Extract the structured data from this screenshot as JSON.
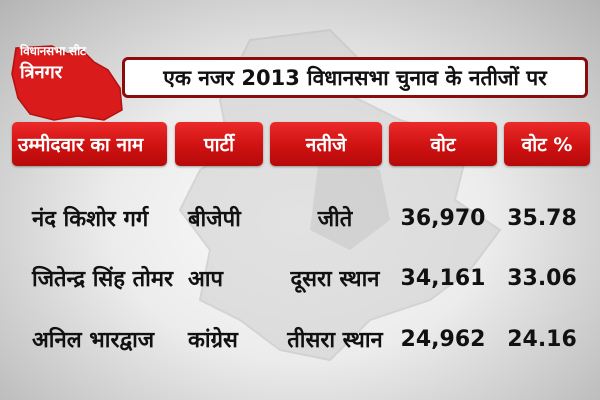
{
  "logo": {
    "line1": "विधानसभा सीट",
    "line2": "त्रिनगर"
  },
  "title": "एक नजर 2013 विधानसभा चुनाव के नतीजों पर",
  "columns": [
    "उम्मीदवार का नाम",
    "पार्टी",
    "नतीजे",
    "वोट",
    "वोट %"
  ],
  "rows": [
    {
      "name": "नंद किशोर गर्ग",
      "party": "बीजेपी",
      "result": "जीते",
      "votes": "36,970",
      "percent": "35.78"
    },
    {
      "name": "जितेन्द्र सिंह तोमर",
      "party": "आप",
      "result": "दूसरा स्थान",
      "votes": "34,161",
      "percent": "33.06"
    },
    {
      "name": "अनिल भारद्वाज",
      "party": "कांग्रेस",
      "result": "तीसरा स्थान",
      "votes": "24,962",
      "percent": "24.16"
    }
  ],
  "colors": {
    "header_red": "#d41414",
    "title_border": "#8a0c0c",
    "text": "#111111",
    "logo_red": "#d91b1b"
  },
  "icons": {
    "logo": "red-map-shape-icon",
    "background": "grey-map-watermark-icon"
  }
}
